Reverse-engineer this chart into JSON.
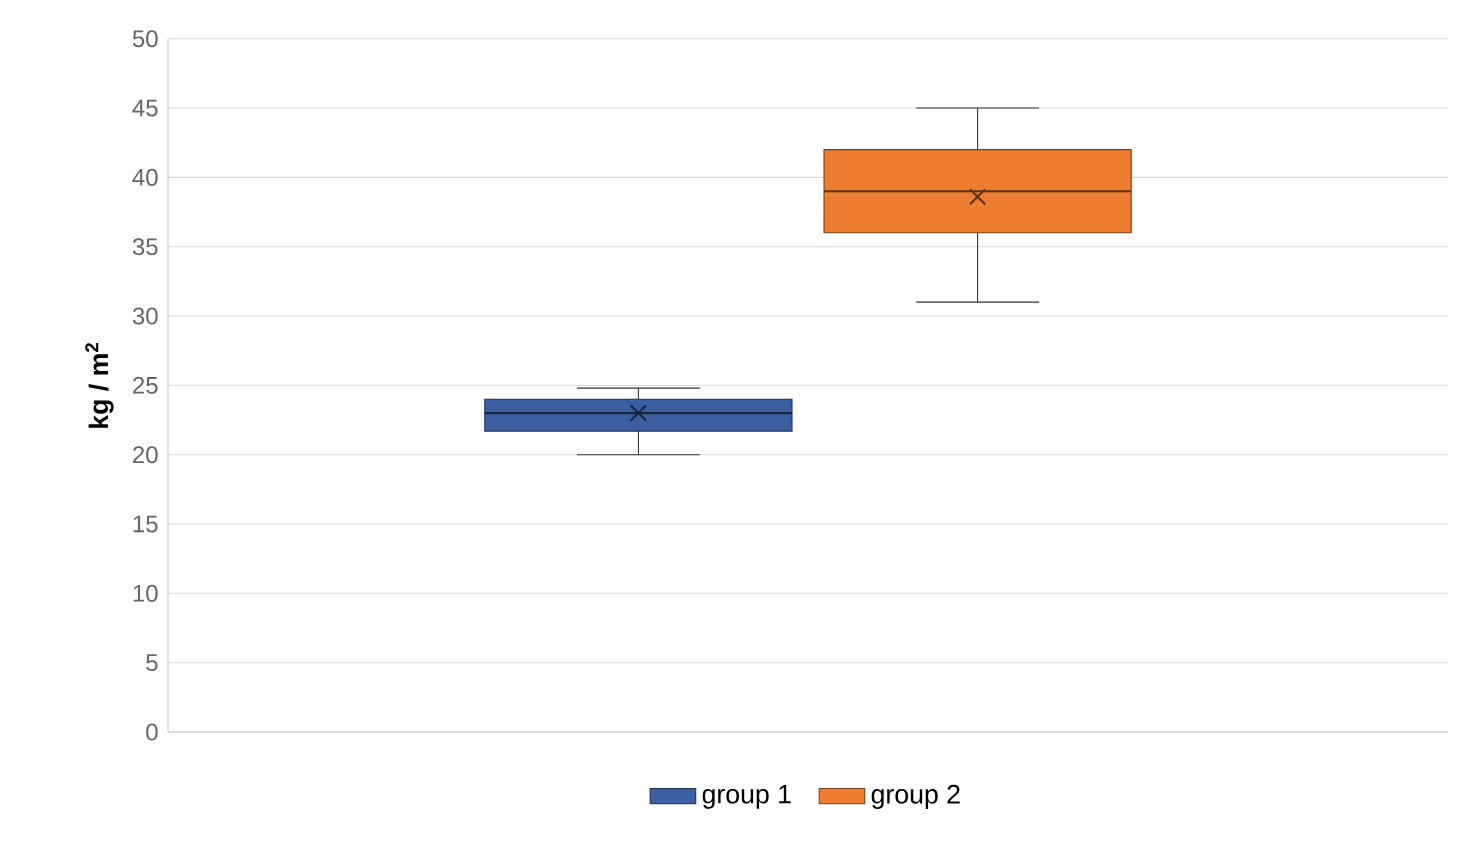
{
  "chart_data": {
    "type": "box",
    "ylabel": "kg / m$^{2}$",
    "categories": [
      null
    ],
    "ylim": [
      0,
      50
    ],
    "yticks": [
      0,
      5,
      10,
      15,
      20,
      25,
      30,
      35,
      40,
      45,
      50
    ],
    "grid": "y",
    "legend": "bottom",
    "series": [
      {
        "name": "group 1",
        "color": "#3b5fa0",
        "boxes": [
          {
            "low": 20,
            "q1": 21.7,
            "median": 23,
            "q3": 24,
            "high": 24.8,
            "mean": 23
          }
        ]
      },
      {
        "name": "group 2",
        "color": "#ed7d31",
        "boxes": [
          {
            "low": 31,
            "q1": 36,
            "median": 39,
            "q3": 42,
            "high": 45,
            "mean": 38.6
          }
        ]
      }
    ]
  }
}
